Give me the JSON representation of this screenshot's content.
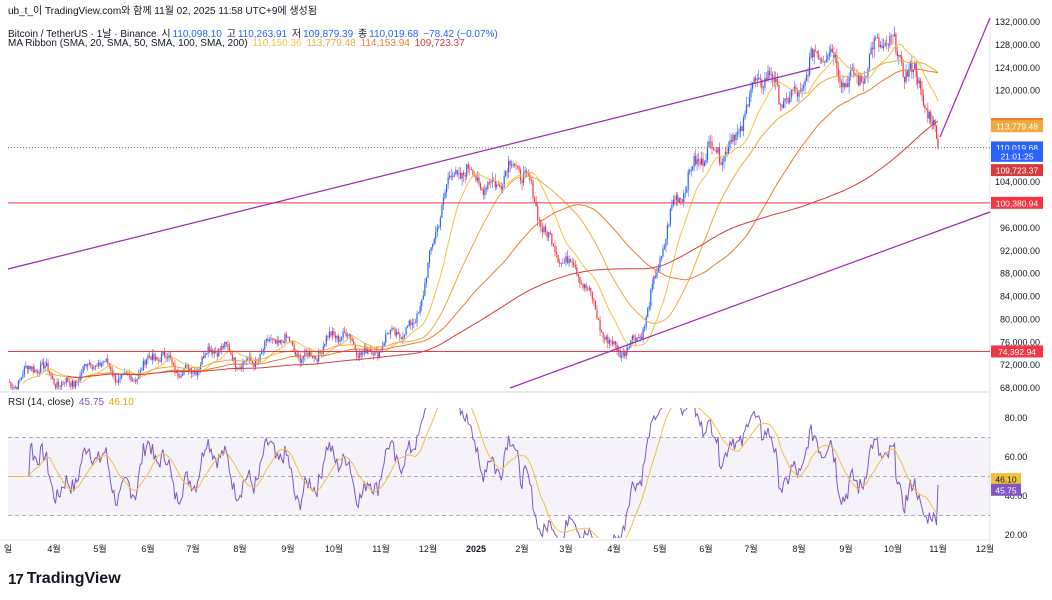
{
  "header": {
    "attribution": "ub_t_이 TradingView.com와 함께 11월 02, 2025 11:58 UTC+9에 생성됨",
    "symbol": "Bitcoin / TetherUS · 1날 · Binance",
    "o_label": "시",
    "o": "110,098.10",
    "h_label": "고",
    "h": "110,263.91",
    "l_label": "저",
    "l": "109,879.39",
    "c_label": "종",
    "c": "110,019.68",
    "change": "−78.42 (−0.07%)",
    "ma_label": "MA Ribbon (SMA, 20, SMA, 50, SMA, 100, SMA, 200)",
    "ma_values": [
      "110,150.36",
      "113,779.48",
      "114,153.94",
      "109,723.37"
    ],
    "rsi_label": "RSI (14, close)",
    "rsi_values": [
      "45.75",
      "46.10"
    ]
  },
  "colors": {
    "up": "#2962ff",
    "down": "#f23645",
    "ma20": "#f5c342",
    "ma50": "#f0a93c",
    "ma100": "#f07a2e",
    "ma200": "#d63b3b",
    "trend": "#9c27b0",
    "rsi": "#7e57c2",
    "rsi_ma": "#f0c23c"
  },
  "chart_data": [
    {
      "type": "candlestick",
      "title": "Bitcoin / TetherUS · 1날 · Binance",
      "price_axis": [
        "132,000.00",
        "128,000.00",
        "124,000.00",
        "120,000.00",
        "104,000.00",
        "96,000.00",
        "92,000.00",
        "88,000.00",
        "84,000.00",
        "80,000.00",
        "76,000.00",
        "72,000.00",
        "68,000.00"
      ],
      "time_axis": [
        "일",
        "4월",
        "5월",
        "6월",
        "7월",
        "8월",
        "9월",
        "10월",
        "11월",
        "12월",
        "2025",
        "2월",
        "3월",
        "4월",
        "5월",
        "6월",
        "7월",
        "8월",
        "9월",
        "10월",
        "11월",
        "12월"
      ],
      "ylim": [
        68000,
        132000
      ],
      "horizontal_lines": [
        100380.94,
        74392.94
      ],
      "price_labels": [
        {
          "text": "114,153.94",
          "price": 114153.94,
          "color": "#f07a2e"
        },
        {
          "text": "113,779.48",
          "price": 113779.48,
          "color": "#f0a93c"
        },
        {
          "text": "110,150.36",
          "price": 110150.36,
          "color": "#f5c342"
        },
        {
          "text": "110,019.68",
          "price": 110019.68,
          "color": "#2962ff"
        },
        {
          "text": "21:01:25",
          "price": 108600,
          "color": "#2962ff"
        },
        {
          "text": "109,723.37",
          "price": 106100,
          "color": "#d63b3b"
        },
        {
          "text": "100,380.94",
          "price": 100380.94,
          "color": "#f23645"
        },
        {
          "text": "74,392.94",
          "price": 74392.94,
          "color": "#f23645"
        }
      ],
      "key_points": [
        {
          "month": "2024-03",
          "price": 70000
        },
        {
          "month": "2024-11",
          "price": 76000
        },
        {
          "month": "2024-12",
          "price": 103000
        },
        {
          "month": "2025-01",
          "price": 106000
        },
        {
          "month": "2025-04",
          "price": 75000
        },
        {
          "month": "2025-05",
          "price": 104000
        },
        {
          "month": "2025-07",
          "price": 120000
        },
        {
          "month": "2025-08",
          "price": 124000
        },
        {
          "month": "2025-10",
          "price": 126000
        },
        {
          "month": "2025-11",
          "price": 110019.68
        }
      ]
    },
    {
      "type": "line",
      "title": "RSI (14, close)",
      "rsi_axis": [
        "80.00",
        "60.00",
        "40.00",
        "20.00"
      ],
      "ylim": [
        15,
        90
      ],
      "band": [
        30,
        70
      ],
      "mid": 50,
      "current": [
        45.75,
        46.1
      ]
    }
  ],
  "branding": {
    "logo_text": "TradingView",
    "logo_mark": "17"
  }
}
